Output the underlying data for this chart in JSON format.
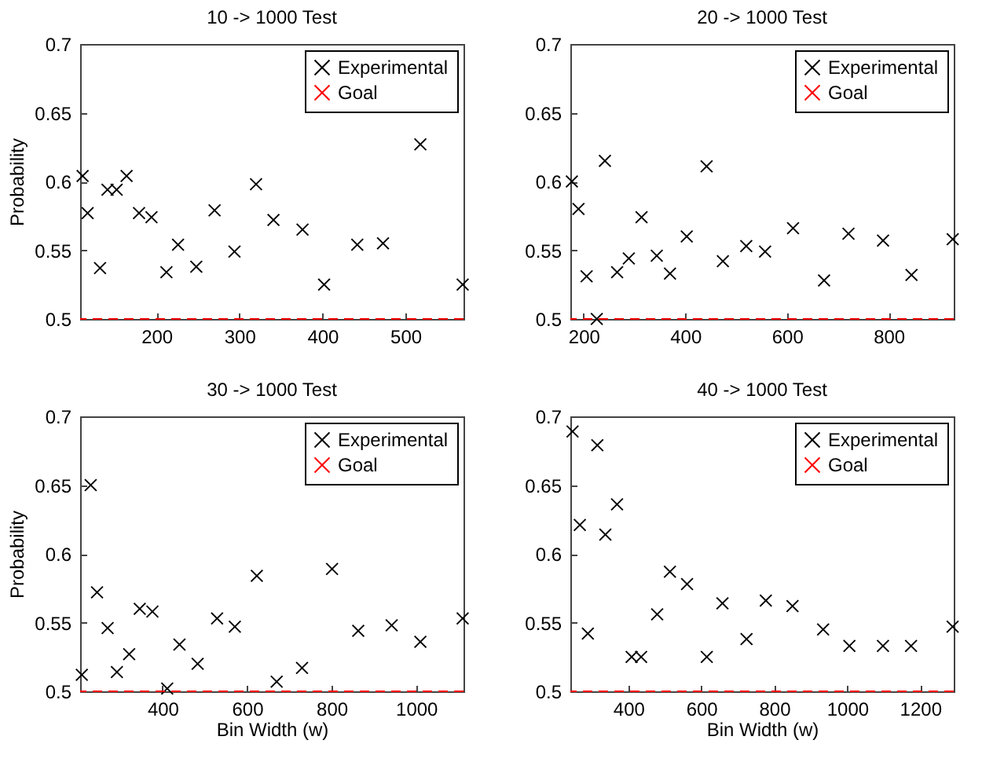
{
  "chart_data": [
    {
      "type": "scatter",
      "title": "10 -> 1000 Test",
      "ylabel": "Probability",
      "xlim": [
        108,
        570
      ],
      "xticks": [
        200,
        300,
        400,
        500
      ],
      "ylim": [
        0.5,
        0.7
      ],
      "yticks": [
        0.5,
        0.55,
        0.6,
        0.65,
        0.7
      ],
      "marker": "cross",
      "legend": "top right",
      "grid": false,
      "series": [
        {
          "name": "Experimental",
          "color": "#000000",
          "x": [
            111,
            117,
            132,
            141,
            152,
            164,
            179,
            194,
            212,
            226,
            248,
            270,
            294,
            320,
            341,
            376,
            402,
            442,
            473,
            518,
            569
          ],
          "values": [
            0.604,
            0.577,
            0.537,
            0.594,
            0.594,
            0.604,
            0.577,
            0.574,
            0.534,
            0.554,
            0.538,
            0.579,
            0.549,
            0.598,
            0.572,
            0.565,
            0.525,
            0.554,
            0.555,
            0.627,
            0.525
          ]
        }
      ],
      "ref_lines": [
        {
          "axis": "y",
          "value": 0.5,
          "label": "Goal",
          "color": "#ff0000",
          "line_style": "dashed"
        }
      ]
    },
    {
      "type": "scatter",
      "title": "20 -> 1000 Test",
      "xlim": [
        174,
        928
      ],
      "xticks": [
        200,
        400,
        600,
        800
      ],
      "ylim": [
        0.5,
        0.7
      ],
      "yticks": [
        0.5,
        0.55,
        0.6,
        0.65,
        0.7
      ],
      "marker": "cross",
      "legend": "top right",
      "grid": false,
      "series": [
        {
          "name": "Experimental",
          "color": "#000000",
          "x": [
            177,
            190,
            206,
            226,
            242,
            266,
            289,
            314,
            344,
            370,
            403,
            442,
            474,
            520,
            557,
            612,
            673,
            721,
            789,
            845,
            926
          ],
          "values": [
            0.6,
            0.58,
            0.531,
            0.5,
            0.615,
            0.534,
            0.544,
            0.574,
            0.546,
            0.533,
            0.56,
            0.611,
            0.542,
            0.553,
            0.549,
            0.566,
            0.528,
            0.562,
            0.557,
            0.532,
            0.558
          ]
        }
      ],
      "ref_lines": [
        {
          "axis": "y",
          "value": 0.5,
          "label": "Goal",
          "color": "#ff0000",
          "line_style": "dashed"
        }
      ]
    },
    {
      "type": "scatter",
      "title": "30 -> 1000 Test",
      "xlabel": "Bin Width (w)",
      "ylabel": "Probability",
      "xlim": [
        205,
        1112
      ],
      "xticks": [
        400,
        600,
        800,
        1000
      ],
      "ylim": [
        0.5,
        0.7
      ],
      "yticks": [
        0.5,
        0.55,
        0.6,
        0.65,
        0.7
      ],
      "marker": "cross",
      "legend": "top right",
      "grid": false,
      "series": [
        {
          "name": "Experimental",
          "color": "#000000",
          "x": [
            209,
            230,
            245,
            270,
            292,
            321,
            346,
            376,
            411,
            440,
            483,
            529,
            571,
            623,
            670,
            730,
            801,
            863,
            942,
            1010,
            1110
          ],
          "values": [
            0.512,
            0.65,
            0.572,
            0.546,
            0.514,
            0.527,
            0.56,
            0.558,
            0.502,
            0.534,
            0.52,
            0.553,
            0.547,
            0.584,
            0.507,
            0.517,
            0.589,
            0.544,
            0.548,
            0.536,
            0.553
          ]
        }
      ],
      "ref_lines": [
        {
          "axis": "y",
          "value": 0.5,
          "label": "Goal",
          "color": "#ff0000",
          "line_style": "dashed"
        }
      ]
    },
    {
      "type": "scatter",
      "title": "40 -> 1000 Test",
      "xlabel": "Bin Width (w)",
      "xlim": [
        241,
        1292
      ],
      "xticks": [
        400,
        600,
        800,
        1000,
        1200
      ],
      "ylim": [
        0.5,
        0.7
      ],
      "yticks": [
        0.5,
        0.55,
        0.6,
        0.65,
        0.7
      ],
      "marker": "cross",
      "legend": "top right",
      "grid": false,
      "series": [
        {
          "name": "Experimental",
          "color": "#000000",
          "x": [
            247,
            267,
            289,
            315,
            337,
            369,
            409,
            435,
            479,
            514,
            561,
            615,
            658,
            724,
            777,
            850,
            934,
            1006,
            1098,
            1175,
            1289
          ],
          "values": [
            0.689,
            0.621,
            0.542,
            0.679,
            0.614,
            0.636,
            0.525,
            0.525,
            0.556,
            0.587,
            0.578,
            0.525,
            0.564,
            0.538,
            0.566,
            0.562,
            0.545,
            0.533,
            0.533,
            0.533,
            0.547
          ]
        }
      ],
      "ref_lines": [
        {
          "axis": "y",
          "value": 0.5,
          "label": "Goal",
          "color": "#ff0000",
          "line_style": "dashed"
        }
      ]
    }
  ]
}
